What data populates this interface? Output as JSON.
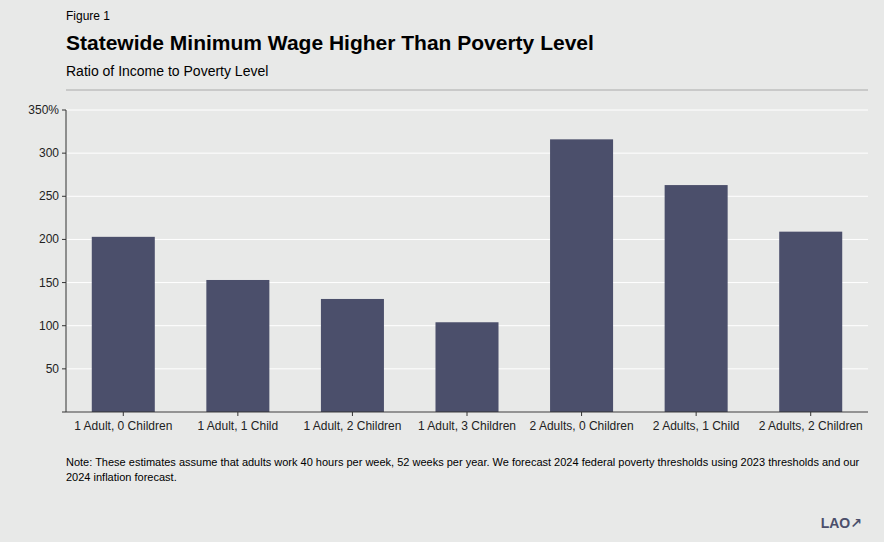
{
  "chart_data": {
    "type": "bar",
    "title": "Statewide Minimum Wage Higher Than Poverty Level",
    "subtitle": "Ratio of Income to Poverty Level",
    "annotations": [
      "Figure 1",
      "Note: These estimates assume that adults work 40 hours per week, 52 weeks per year. We forecast 2024 federal poverty thresholds using 2023 thresholds and our 2024 inflation forecast.",
      "LAO↗"
    ],
    "categories": [
      "1 Adult, 0 Children",
      "1 Adult, 1 Child",
      "1 Adult, 2 Children",
      "1 Adult, 3 Children",
      "2 Adults, 0 Children",
      "2 Adults, 1 Child",
      "2 Adults, 2 Children"
    ],
    "values": [
      203,
      153,
      131,
      104,
      316,
      263,
      209
    ],
    "color": "#4b4f6b",
    "ylim": [
      0,
      350
    ],
    "yticks": [
      {
        "value": 0,
        "label": null
      },
      50,
      100,
      150,
      200,
      250,
      300,
      {
        "value": 350,
        "label": "350%"
      }
    ],
    "grid": true
  }
}
